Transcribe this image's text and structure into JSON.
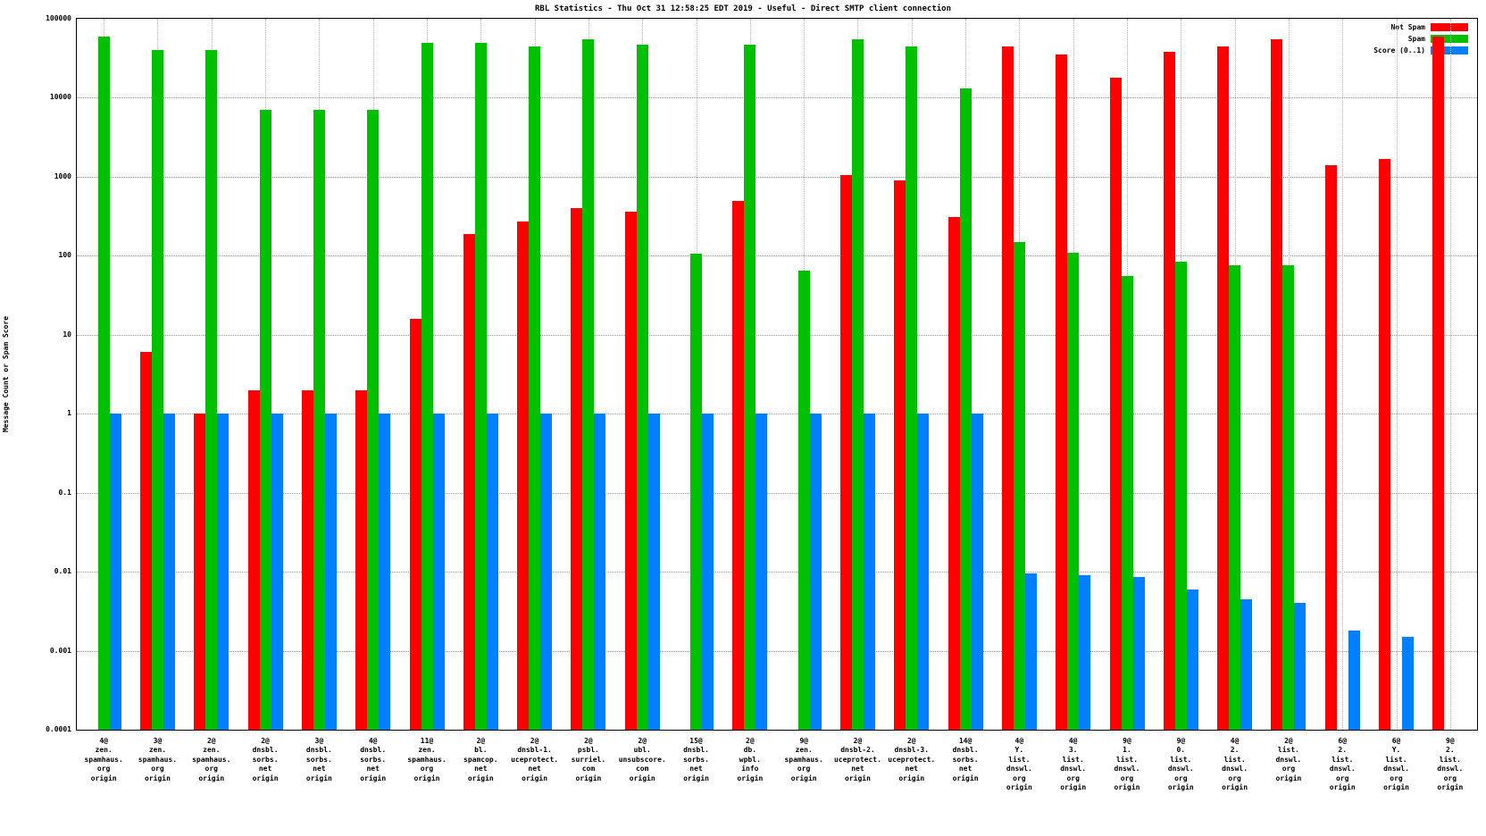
{
  "chart_data": {
    "type": "bar",
    "title": "RBL Statistics - Thu Oct 31 12:58:25 EDT 2019 - Useful - Direct SMTP client connection",
    "ylabel": "Message Count or Spam Score",
    "yscale": "log",
    "ylim": [
      0.0001,
      100000
    ],
    "grid": true,
    "legend_position": "top-right",
    "yticks": [
      100000,
      10000,
      1000,
      100,
      10,
      1,
      0.1,
      0.01,
      0.001,
      0.0001
    ],
    "ytick_labels": [
      "100000",
      "10000",
      "1000",
      "100",
      "10",
      "1",
      "0.1",
      "0.01",
      "0.001",
      "0.0001"
    ],
    "categories": [
      [
        "4@",
        "zen.",
        "spamhaus.",
        "org",
        "origin"
      ],
      [
        "3@",
        "zen.",
        "spamhaus.",
        "org",
        "origin"
      ],
      [
        "2@",
        "zen.",
        "spamhaus.",
        "org",
        "origin"
      ],
      [
        "2@",
        "dnsbl.",
        "sorbs.",
        "net",
        "origin"
      ],
      [
        "3@",
        "dnsbl.",
        "sorbs.",
        "net",
        "origin"
      ],
      [
        "4@",
        "dnsbl.",
        "sorbs.",
        "net",
        "origin"
      ],
      [
        "11@",
        "zen.",
        "spamhaus.",
        "org",
        "origin"
      ],
      [
        "2@",
        "bl.",
        "spamcop.",
        "net",
        "origin"
      ],
      [
        "2@",
        "dnsbl-1.",
        "uceprotect.",
        "net",
        "origin"
      ],
      [
        "2@",
        "psbl.",
        "surriel.",
        "com",
        "origin"
      ],
      [
        "2@",
        "ubl.",
        "unsubscore.",
        "com",
        "origin"
      ],
      [
        "15@",
        "dnsbl.",
        "sorbs.",
        "net",
        "origin"
      ],
      [
        "2@",
        "db.",
        "wpbl.",
        "info",
        "origin"
      ],
      [
        "9@",
        "zen.",
        "spamhaus.",
        "org",
        "origin"
      ],
      [
        "2@",
        "dnsbl-2.",
        "uceprotect.",
        "net",
        "origin"
      ],
      [
        "2@",
        "dnsbl-3.",
        "uceprotect.",
        "net",
        "origin"
      ],
      [
        "14@",
        "dnsbl.",
        "sorbs.",
        "net",
        "origin"
      ],
      [
        "4@",
        "Y.",
        "list.",
        "dnswl.",
        "org",
        "origin"
      ],
      [
        "4@",
        "3.",
        "list.",
        "dnswl.",
        "org",
        "origin"
      ],
      [
        "9@",
        "1.",
        "list.",
        "dnswl.",
        "org",
        "origin"
      ],
      [
        "9@",
        "0.",
        "list.",
        "dnswl.",
        "org",
        "origin"
      ],
      [
        "4@",
        "2.",
        "list.",
        "dnswl.",
        "org",
        "origin"
      ],
      [
        "2@",
        "list.",
        "dnswl.",
        "org",
        "origin"
      ],
      [
        "6@",
        "2.",
        "list.",
        "dnswl.",
        "org",
        "origin"
      ],
      [
        "6@",
        "Y.",
        "list.",
        "dnswl.",
        "org",
        "origin"
      ],
      [
        "9@",
        "2.",
        "list.",
        "dnswl.",
        "org",
        "origin"
      ]
    ],
    "series": [
      {
        "name": "Not Spam",
        "color": "#ff0000",
        "values": [
          null,
          6,
          1,
          2,
          2,
          2,
          16,
          190,
          270,
          400,
          360,
          null,
          500,
          null,
          1050,
          900,
          310,
          45000,
          35000,
          18000,
          38000,
          45000,
          55000,
          1400,
          1700,
          60000
        ]
      },
      {
        "name": "Spam",
        "color": "#00c000",
        "values": [
          60000,
          40000,
          40000,
          7000,
          7000,
          7000,
          50000,
          50000,
          45000,
          55000,
          47000,
          105,
          47000,
          65,
          55000,
          45000,
          13000,
          150,
          110,
          55,
          85,
          75,
          75,
          null,
          null,
          null
        ]
      },
      {
        "name": "Score (0..1)",
        "color": "#0080ff",
        "values": [
          1,
          1,
          1,
          1,
          1,
          1,
          1,
          1,
          1,
          1,
          1,
          1,
          1,
          1,
          1,
          1,
          1,
          0.0095,
          0.009,
          0.0085,
          0.006,
          0.0045,
          0.004,
          0.0018,
          0.0015,
          null
        ]
      }
    ]
  }
}
